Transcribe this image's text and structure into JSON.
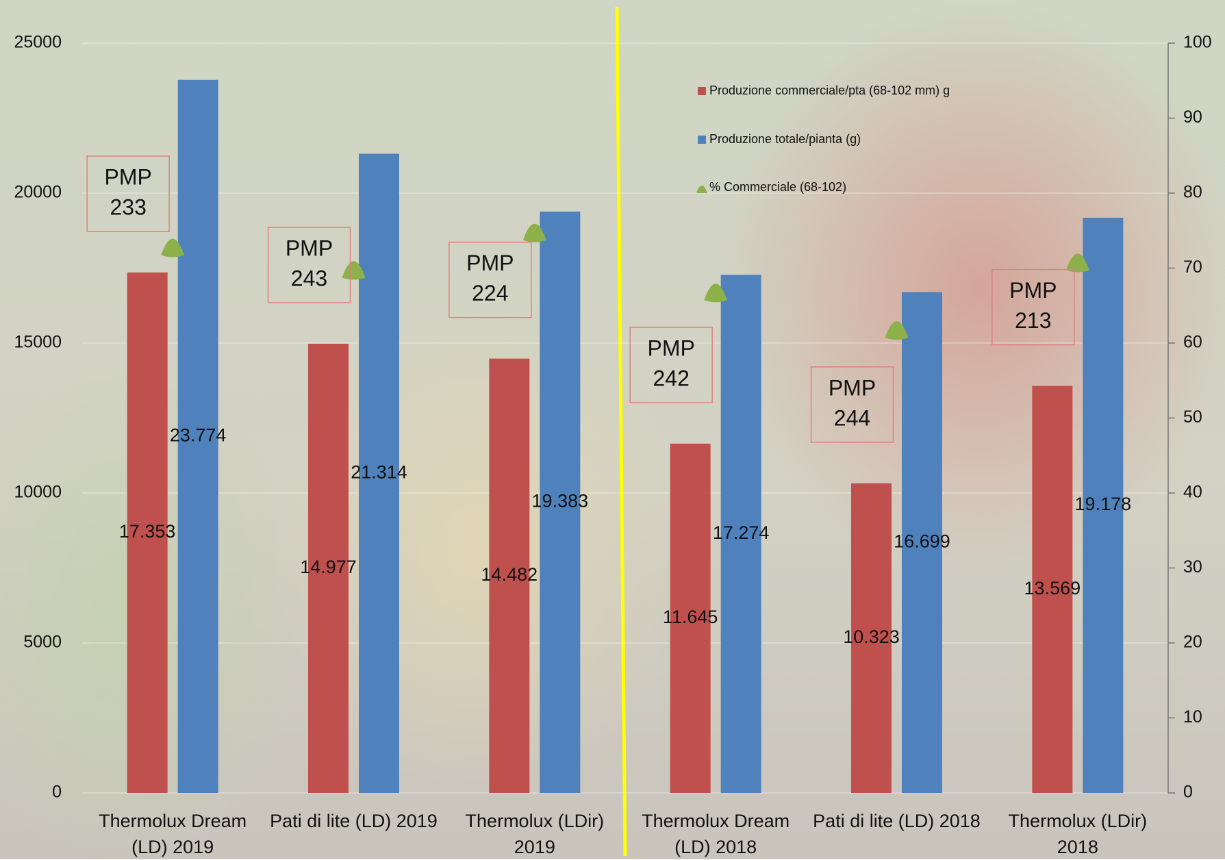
{
  "chart_data": {
    "type": "bar",
    "categories": [
      "Thermolux Dream (LD) 2019",
      "Pati di lite (LD) 2019",
      "Thermolux (LDir) 2019",
      "Thermolux Dream (LD) 2018",
      "Pati di lite (LD) 2018",
      "Thermolux (LDir) 2018"
    ],
    "series": [
      {
        "name": "Produzione commerciale/pta (68-102 mm) g",
        "color": "#c0504d",
        "values": [
          17353,
          14977,
          14482,
          11645,
          10323,
          13569
        ],
        "value_labels": [
          "17.353",
          "14.977",
          "14.482",
          "11.645",
          "10.323",
          "13.569"
        ]
      },
      {
        "name": "Produzione totale/pianta (g)",
        "color": "#4f81bd",
        "values": [
          23774,
          21314,
          19383,
          17274,
          16699,
          19178
        ],
        "value_labels": [
          "23.774",
          "21.314",
          "19.383",
          "17.274",
          "16.699",
          "19.178"
        ]
      },
      {
        "name": "% Commerciale (68-102)",
        "color": "#8cb04a",
        "axis": "y2",
        "marker": "triangle",
        "values": [
          73,
          70,
          75,
          67,
          62,
          71
        ]
      }
    ],
    "annotations": [
      {
        "label": "PMP",
        "value": 233
      },
      {
        "label": "PMP",
        "value": 243
      },
      {
        "label": "PMP",
        "value": 224
      },
      {
        "label": "PMP",
        "value": 242
      },
      {
        "label": "PMP",
        "value": 244
      },
      {
        "label": "PMP",
        "value": 213
      }
    ],
    "ylim": [
      0,
      25000
    ],
    "yticks": [
      0,
      5000,
      10000,
      15000,
      20000,
      25000
    ],
    "y2lim": [
      0,
      100
    ],
    "y2ticks": [
      0,
      10,
      20,
      30,
      40,
      50,
      60,
      70,
      80,
      90,
      100
    ],
    "grid": true,
    "legend": "top-right"
  }
}
